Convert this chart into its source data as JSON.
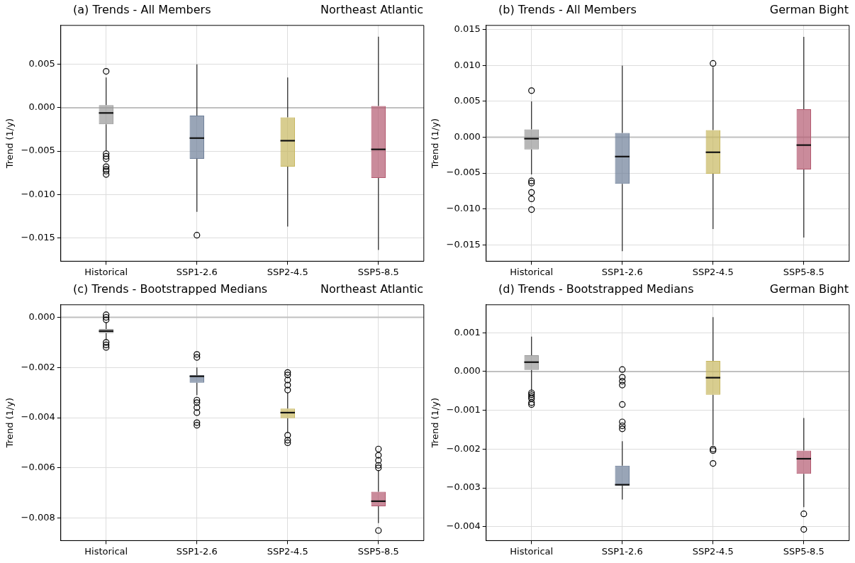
{
  "chart_data": [
    {
      "type": "box",
      "title": "(a) Trends - All Members",
      "subtitle": "Northeast Atlantic",
      "ylabel": "Trend (1/y)",
      "categories": [
        "Historical",
        "SSP1-2.6",
        "SSP2-4.5",
        "SSP5-8.5"
      ],
      "colors": [
        "#999999",
        "#6e7f99",
        "#c8b860",
        "#b45a70"
      ],
      "boxes": [
        {
          "low": -0.005,
          "q1": -0.0019,
          "median": -0.0006,
          "q3": 0.0003,
          "high": 0.0035,
          "outliers": [
            0.0042,
            -0.0053,
            -0.0056,
            -0.0059,
            -0.0068,
            -0.0071,
            -0.0073,
            -0.0077
          ]
        },
        {
          "low": -0.012,
          "q1": -0.0059,
          "median": -0.0035,
          "q3": -0.0009,
          "high": 0.005,
          "outliers": [
            -0.0147
          ]
        },
        {
          "low": -0.0137,
          "q1": -0.0068,
          "median": -0.0038,
          "q3": -0.0011,
          "high": 0.0035
        },
        {
          "low": -0.0164,
          "q1": -0.0081,
          "median": -0.0048,
          "q3": 0.0002,
          "high": 0.0082
        }
      ],
      "ylim": [
        -0.0177,
        0.0095
      ],
      "yticks": [
        {
          "value": -0.015,
          "label": "−0.015"
        },
        {
          "value": -0.01,
          "label": "−0.010"
        },
        {
          "value": -0.005,
          "label": "−0.005"
        },
        {
          "value": 0,
          "label": "0.000"
        },
        {
          "value": 0.005,
          "label": "0.005"
        }
      ],
      "ref_lines": [
        {
          "axis": "y",
          "value": 0,
          "color": "#c0c0c0"
        }
      ],
      "grid": true,
      "marker": "circle"
    },
    {
      "type": "box",
      "title": "(b) Trends - All Members",
      "subtitle": "German Bight",
      "ylabel": "Trend (1/y)",
      "categories": [
        "Historical",
        "SSP1-2.6",
        "SSP2-4.5",
        "SSP5-8.5"
      ],
      "colors": [
        "#999999",
        "#6e7f99",
        "#c8b860",
        "#b45a70"
      ],
      "boxes": [
        {
          "low": -0.0052,
          "q1": -0.0017,
          "median": -0.0002,
          "q3": 0.0011,
          "high": 0.005,
          "outliers": [
            0.0065,
            -0.0061,
            -0.0064,
            -0.0077,
            -0.0086,
            -0.0101
          ]
        },
        {
          "low": -0.0159,
          "q1": -0.0065,
          "median": -0.0027,
          "q3": 0.0006,
          "high": 0.01
        },
        {
          "low": -0.0128,
          "q1": -0.0051,
          "median": -0.0021,
          "q3": 0.001,
          "high": 0.0098,
          "outliers": [
            0.0103
          ]
        },
        {
          "low": -0.014,
          "q1": -0.0045,
          "median": -0.0011,
          "q3": 0.0039,
          "high": 0.014
        }
      ],
      "ylim": [
        -0.0173,
        0.0156
      ],
      "yticks": [
        {
          "value": -0.015,
          "label": "−0.015"
        },
        {
          "value": -0.01,
          "label": "−0.010"
        },
        {
          "value": -0.005,
          "label": "−0.005"
        },
        {
          "value": 0,
          "label": "0.000"
        },
        {
          "value": 0.005,
          "label": "0.005"
        },
        {
          "value": 0.01,
          "label": "0.010"
        },
        {
          "value": 0.015,
          "label": "0.015"
        }
      ],
      "ref_lines": [
        {
          "axis": "y",
          "value": 0,
          "color": "#c0c0c0"
        }
      ],
      "grid": true,
      "marker": "circle"
    },
    {
      "type": "box",
      "title": "(c) Trends - Bootstrapped Medians",
      "subtitle": "Northeast Atlantic",
      "ylabel": "Trend (1/y)",
      "categories": [
        "Historical",
        "SSP1-2.6",
        "SSP2-4.5",
        "SSP5-8.5"
      ],
      "colors": [
        "#999999",
        "#6e7f99",
        "#c8b860",
        "#b45a70"
      ],
      "boxes": [
        {
          "low": -0.0009,
          "q1": -0.00063,
          "median": -0.00055,
          "q3": -0.00047,
          "high": -0.0002,
          "outliers": [
            0.0001,
            0,
            -0.0001,
            -0.001,
            -0.0011,
            -0.0012
          ]
        },
        {
          "low": -0.0031,
          "q1": -0.00261,
          "median": -0.00235,
          "q3": -0.00231,
          "high": -0.002,
          "outliers": [
            -0.00148,
            -0.0016,
            -0.0033,
            -0.0034,
            -0.0036,
            -0.0038,
            -0.0042,
            -0.0043
          ]
        },
        {
          "low": -0.0046,
          "q1": -0.00402,
          "median": -0.0038,
          "q3": -0.00364,
          "high": -0.003,
          "outliers": [
            -0.0022,
            -0.0023,
            -0.0025,
            -0.0027,
            -0.0029,
            -0.0047,
            -0.0049,
            -0.005
          ]
        },
        {
          "low": -0.0082,
          "q1": -0.00753,
          "median": -0.00733,
          "q3": -0.00695,
          "high": -0.0061,
          "outliers": [
            -0.00525,
            -0.0055,
            -0.0057,
            -0.0059,
            -0.006,
            -0.0085
          ]
        }
      ],
      "ylim": [
        -0.0089,
        0.0005
      ],
      "yticks": [
        {
          "value": -0.008,
          "label": "−0.008"
        },
        {
          "value": -0.006,
          "label": "−0.006"
        },
        {
          "value": -0.004,
          "label": "−0.004"
        },
        {
          "value": -0.002,
          "label": "−0.002"
        },
        {
          "value": 0,
          "label": "0.000"
        }
      ],
      "ref_lines": [
        {
          "axis": "y",
          "value": 0,
          "color": "#c0c0c0"
        }
      ],
      "grid": true,
      "marker": "circle"
    },
    {
      "type": "box",
      "title": "(d) Trends - Bootstrapped Medians",
      "subtitle": "German Bight",
      "ylabel": "Trend (1/y)",
      "categories": [
        "Historical",
        "SSP1-2.6",
        "SSP2-4.5",
        "SSP5-8.5"
      ],
      "colors": [
        "#999999",
        "#6e7f99",
        "#c8b860",
        "#b45a70"
      ],
      "boxes": [
        {
          "low": -0.0005,
          "q1": 4e-05,
          "median": 0.00024,
          "q3": 0.00042,
          "high": 0.0009,
          "outliers": [
            -0.00055,
            -0.0006,
            -0.00065,
            -0.0007,
            -0.0008,
            -0.00085
          ]
        },
        {
          "low": -0.0033,
          "q1": -0.00294,
          "median": -0.00292,
          "q3": -0.00243,
          "high": -0.0018,
          "outliers": [
            5e-05,
            -0.00015,
            -0.00025,
            -0.00035,
            -0.00085,
            -0.0013,
            -0.0014,
            -0.00148
          ]
        },
        {
          "low": -0.0019,
          "q1": -0.0006,
          "median": -0.00016,
          "q3": 0.00027,
          "high": 0.0014,
          "outliers": [
            -0.002,
            -0.00204,
            -0.00237
          ]
        },
        {
          "low": -0.0035,
          "q1": -0.00264,
          "median": -0.00225,
          "q3": -0.00204,
          "high": -0.0012,
          "outliers": [
            -0.00367,
            -0.00407
          ]
        }
      ],
      "ylim": [
        -0.00436,
        0.00172
      ],
      "yticks": [
        {
          "value": -0.004,
          "label": "−0.004"
        },
        {
          "value": -0.003,
          "label": "−0.003"
        },
        {
          "value": -0.002,
          "label": "−0.002"
        },
        {
          "value": -0.001,
          "label": "−0.001"
        },
        {
          "value": 0,
          "label": "0.000"
        },
        {
          "value": 0.001,
          "label": "0.001"
        }
      ],
      "ref_lines": [
        {
          "axis": "y",
          "value": 0,
          "color": "#c0c0c0"
        }
      ],
      "grid": true,
      "marker": "circle"
    }
  ]
}
